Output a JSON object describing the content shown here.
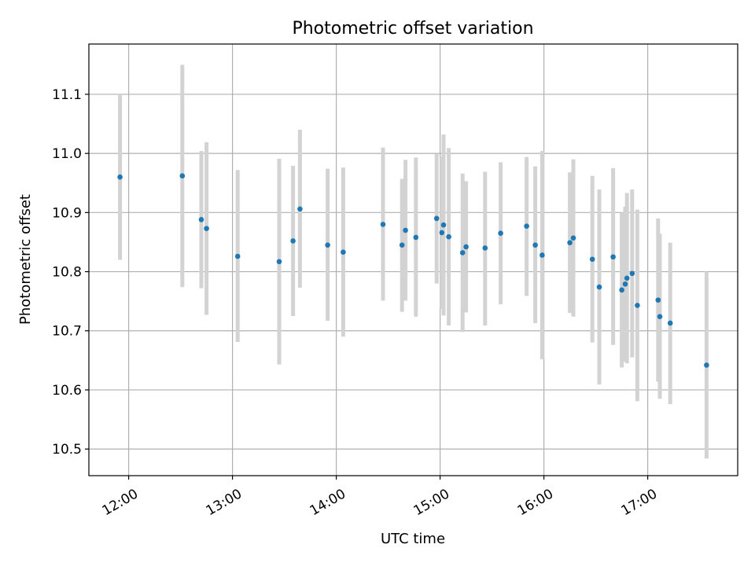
{
  "chart_data": {
    "type": "scatter",
    "title": "Photometric offset variation",
    "xlabel": "UTC time",
    "ylabel": "Photometric offset",
    "x_unit": "UTC time (HH:MM)",
    "xlim": [
      "11:37",
      "17:52"
    ],
    "ylim": [
      10.455,
      11.185
    ],
    "x_ticks": [
      "12:00",
      "13:00",
      "14:00",
      "15:00",
      "16:00",
      "17:00"
    ],
    "y_ticks": [
      10.5,
      10.6,
      10.7,
      10.8,
      10.9,
      11.0,
      11.1
    ],
    "y_tick_labels": [
      "10.5",
      "10.6",
      "10.7",
      "10.8",
      "10.9",
      "11.0",
      "11.1"
    ],
    "grid": true,
    "point_color": "#1f77b4",
    "errorbar_color": "#d3d3d3",
    "points": [
      {
        "time": "11:55",
        "y": 10.96,
        "lo": 10.82,
        "hi": 11.1
      },
      {
        "time": "12:31",
        "y": 10.962,
        "lo": 10.774,
        "hi": 11.15
      },
      {
        "time": "12:42",
        "y": 10.888,
        "lo": 10.772,
        "hi": 11.004
      },
      {
        "time": "12:45",
        "y": 10.873,
        "lo": 10.727,
        "hi": 11.019
      },
      {
        "time": "13:03",
        "y": 10.826,
        "lo": 10.681,
        "hi": 10.972
      },
      {
        "time": "13:27",
        "y": 10.817,
        "lo": 10.643,
        "hi": 10.991
      },
      {
        "time": "13:35",
        "y": 10.852,
        "lo": 10.725,
        "hi": 10.979
      },
      {
        "time": "13:39",
        "y": 10.906,
        "lo": 10.773,
        "hi": 11.04
      },
      {
        "time": "13:55",
        "y": 10.845,
        "lo": 10.717,
        "hi": 10.974
      },
      {
        "time": "14:04",
        "y": 10.833,
        "lo": 10.69,
        "hi": 10.976
      },
      {
        "time": "14:27",
        "y": 10.88,
        "lo": 10.751,
        "hi": 11.01
      },
      {
        "time": "14:38",
        "y": 10.845,
        "lo": 10.732,
        "hi": 10.957
      },
      {
        "time": "14:40",
        "y": 10.87,
        "lo": 10.751,
        "hi": 10.989
      },
      {
        "time": "14:46",
        "y": 10.858,
        "lo": 10.724,
        "hi": 10.993
      },
      {
        "time": "14:58",
        "y": 10.89,
        "lo": 10.78,
        "hi": 10.999
      },
      {
        "time": "15:01",
        "y": 10.866,
        "lo": 10.737,
        "hi": 10.995
      },
      {
        "time": "15:02",
        "y": 10.879,
        "lo": 10.726,
        "hi": 11.032
      },
      {
        "time": "15:05",
        "y": 10.859,
        "lo": 10.709,
        "hi": 11.009
      },
      {
        "time": "15:13",
        "y": 10.832,
        "lo": 10.698,
        "hi": 10.966
      },
      {
        "time": "15:15",
        "y": 10.842,
        "lo": 10.731,
        "hi": 10.953
      },
      {
        "time": "15:26",
        "y": 10.84,
        "lo": 10.709,
        "hi": 10.969
      },
      {
        "time": "15:35",
        "y": 10.865,
        "lo": 10.745,
        "hi": 10.985
      },
      {
        "time": "15:50",
        "y": 10.877,
        "lo": 10.759,
        "hi": 10.994
      },
      {
        "time": "15:55",
        "y": 10.845,
        "lo": 10.713,
        "hi": 10.978
      },
      {
        "time": "15:59",
        "y": 10.828,
        "lo": 10.652,
        "hi": 11.004
      },
      {
        "time": "16:15",
        "y": 10.849,
        "lo": 10.73,
        "hi": 10.968
      },
      {
        "time": "16:17",
        "y": 10.857,
        "lo": 10.724,
        "hi": 10.99
      },
      {
        "time": "16:28",
        "y": 10.821,
        "lo": 10.68,
        "hi": 10.962
      },
      {
        "time": "16:32",
        "y": 10.774,
        "lo": 10.609,
        "hi": 10.939
      },
      {
        "time": "16:40",
        "y": 10.825,
        "lo": 10.676,
        "hi": 10.975
      },
      {
        "time": "16:45",
        "y": 10.769,
        "lo": 10.638,
        "hi": 10.9
      },
      {
        "time": "16:47",
        "y": 10.779,
        "lo": 10.648,
        "hi": 10.91
      },
      {
        "time": "16:48",
        "y": 10.789,
        "lo": 10.645,
        "hi": 10.933
      },
      {
        "time": "16:51",
        "y": 10.797,
        "lo": 10.655,
        "hi": 10.939
      },
      {
        "time": "16:54",
        "y": 10.743,
        "lo": 10.581,
        "hi": 10.905
      },
      {
        "time": "17:06",
        "y": 10.752,
        "lo": 10.614,
        "hi": 10.89
      },
      {
        "time": "17:07",
        "y": 10.724,
        "lo": 10.585,
        "hi": 10.864
      },
      {
        "time": "17:13",
        "y": 10.713,
        "lo": 10.576,
        "hi": 10.849
      },
      {
        "time": "17:34",
        "y": 10.642,
        "lo": 10.484,
        "hi": 10.8
      }
    ]
  }
}
